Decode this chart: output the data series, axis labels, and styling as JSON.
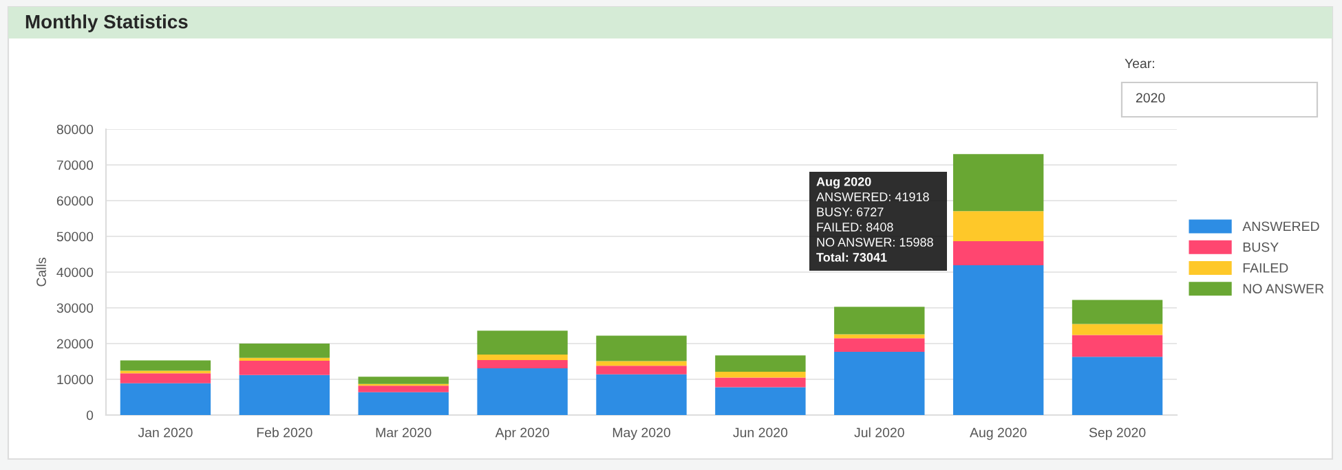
{
  "chart_data": {
    "type": "bar",
    "title": "Monthly Statistics",
    "ylabel": "Calls",
    "stacked": true,
    "categories": [
      "Jan 2020",
      "Feb 2020",
      "Mar 2020",
      "Apr 2020",
      "May 2020",
      "Jun 2020",
      "Jul 2020",
      "Aug 2020",
      "Sep 2020"
    ],
    "series": [
      {
        "name": "ANSWERED",
        "color": "#2d8de4",
        "values": [
          8900,
          11200,
          6400,
          13100,
          11400,
          7800,
          17700,
          41918,
          16300
        ]
      },
      {
        "name": "BUSY",
        "color": "#ff4670",
        "values": [
          2800,
          4000,
          1800,
          2300,
          2400,
          2700,
          3800,
          6727,
          6100
        ]
      },
      {
        "name": "FAILED",
        "color": "#fec829",
        "values": [
          700,
          800,
          500,
          1500,
          1300,
          1600,
          1100,
          8408,
          3100
        ]
      },
      {
        "name": "NO ANSWER",
        "color": "#69a733",
        "values": [
          2900,
          4000,
          2000,
          6700,
          7100,
          4600,
          7700,
          15988,
          6700
        ]
      }
    ],
    "ylim": [
      0,
      80000
    ],
    "yticks": [
      0,
      10000,
      20000,
      30000,
      40000,
      50000,
      60000,
      70000,
      80000
    ],
    "grid": "y",
    "legend": "right",
    "annotations": [
      "Year:",
      "2020",
      "Aug 2020",
      "ANSWERED: 41918",
      "BUSY: 6727",
      "FAILED: 8408",
      "NO ANSWER: 15988",
      "Total: 73041"
    ]
  }
}
